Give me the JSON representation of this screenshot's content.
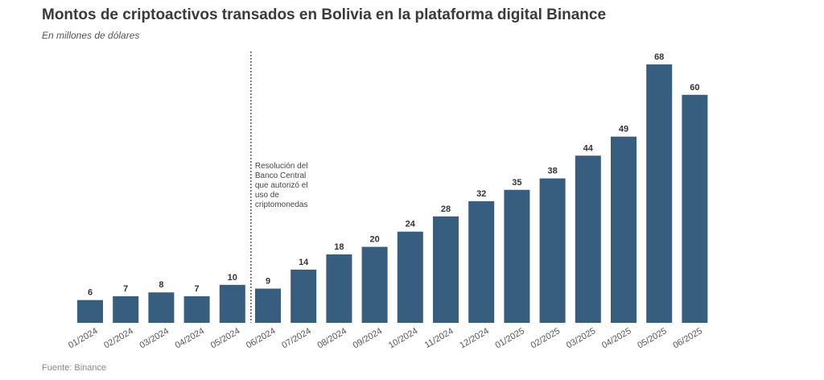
{
  "header": {
    "title": "Montos de criptoactivos transados en Bolivia en la plataforma digital Binance",
    "subtitle": "En millones de dólares"
  },
  "footer": {
    "source": "Fuente: Binance"
  },
  "chart_data": {
    "type": "bar",
    "title": "Montos de criptoactivos transados en Bolivia en la plataforma digital Binance",
    "subtitle": "En millones de dólares",
    "xlabel": "",
    "ylabel": "",
    "categories": [
      "01/2024",
      "02/2024",
      "03/2024",
      "04/2024",
      "05/2024",
      "06/2024",
      "07/2024",
      "08/2024",
      "09/2024",
      "10/2024",
      "11/2024",
      "12/2024",
      "01/2025",
      "02/2025",
      "03/2025",
      "04/2025",
      "05/2025",
      "06/2025"
    ],
    "values": [
      6,
      7,
      8,
      7,
      10,
      9,
      14,
      18,
      20,
      24,
      28,
      32,
      35,
      38,
      44,
      49,
      68,
      60
    ],
    "ylim": [
      0,
      70
    ],
    "grid": false,
    "legend": "none",
    "bar_color": "#375d7f",
    "annotation": {
      "text_lines": [
        "Resolución del",
        "Banco Central",
        "que autorizó el",
        "uso de",
        "criptomonedas"
      ],
      "after_category": "05/2024"
    },
    "source": "Fuente: Binance"
  }
}
